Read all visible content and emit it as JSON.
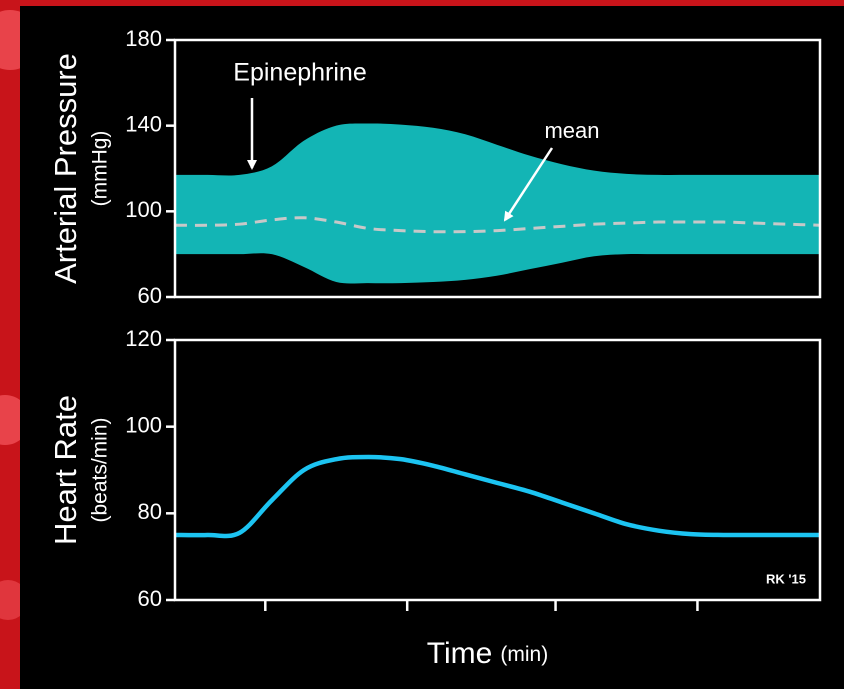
{
  "chart_data": [
    {
      "type": "range",
      "ylabel": "Arterial Pressure",
      "ylabel_unit": "(mmHg)",
      "annotations": [
        "Epinephrine",
        "mean"
      ],
      "x": [
        0,
        5,
        10,
        15,
        20,
        25,
        30,
        35,
        40,
        45,
        50,
        55,
        60,
        65,
        70,
        75,
        80,
        85,
        90,
        95,
        100
      ],
      "xlim": [
        0,
        100
      ],
      "xticks": [
        14,
        36,
        59,
        81
      ],
      "ylim": [
        60,
        180
      ],
      "yticks": [
        60,
        100,
        140,
        180
      ],
      "band": {
        "color": "#13b5b5",
        "upper": [
          117,
          117,
          117,
          121,
          133,
          140,
          141,
          140.5,
          139,
          136,
          131,
          126,
          122,
          119,
          117.5,
          117,
          117,
          117,
          117,
          117,
          117
        ],
        "lower": [
          80,
          80,
          80,
          80,
          74,
          67,
          66.5,
          66.5,
          67,
          68,
          70,
          73,
          76,
          79,
          80,
          80,
          80,
          80,
          80,
          80,
          80
        ]
      },
      "series": [
        {
          "color": "#c8c8c8",
          "dashed": true,
          "values": [
            93.5,
            93.5,
            94,
            96,
            97,
            95,
            92,
            91,
            90.5,
            90.5,
            91,
            92,
            93,
            94,
            94.5,
            95,
            95,
            95,
            94.5,
            94,
            93.5
          ]
        }
      ],
      "grid": false
    },
    {
      "type": "line",
      "ylabel": "Heart Rate",
      "ylabel_unit": "(beats/min)",
      "xlabel": "Time",
      "xlabel_unit": "(min)",
      "credit": "RK '15",
      "x": [
        0,
        5,
        10,
        15,
        20,
        25,
        30,
        35,
        40,
        45,
        50,
        55,
        60,
        65,
        70,
        75,
        80,
        85,
        90,
        95,
        100
      ],
      "xlim": [
        0,
        100
      ],
      "xticks": [
        14,
        36,
        59,
        81
      ],
      "ylim": [
        60,
        120
      ],
      "yticks": [
        60,
        80,
        100,
        120
      ],
      "series": [
        {
          "color": "#1cc4f2",
          "dashed": false,
          "values": [
            75,
            75,
            75.5,
            83,
            90,
            92.5,
            93,
            92.5,
            91,
            89,
            87,
            85,
            82.5,
            80,
            77.5,
            76,
            75.2,
            75,
            75,
            75,
            75
          ]
        }
      ],
      "grid": false
    }
  ]
}
